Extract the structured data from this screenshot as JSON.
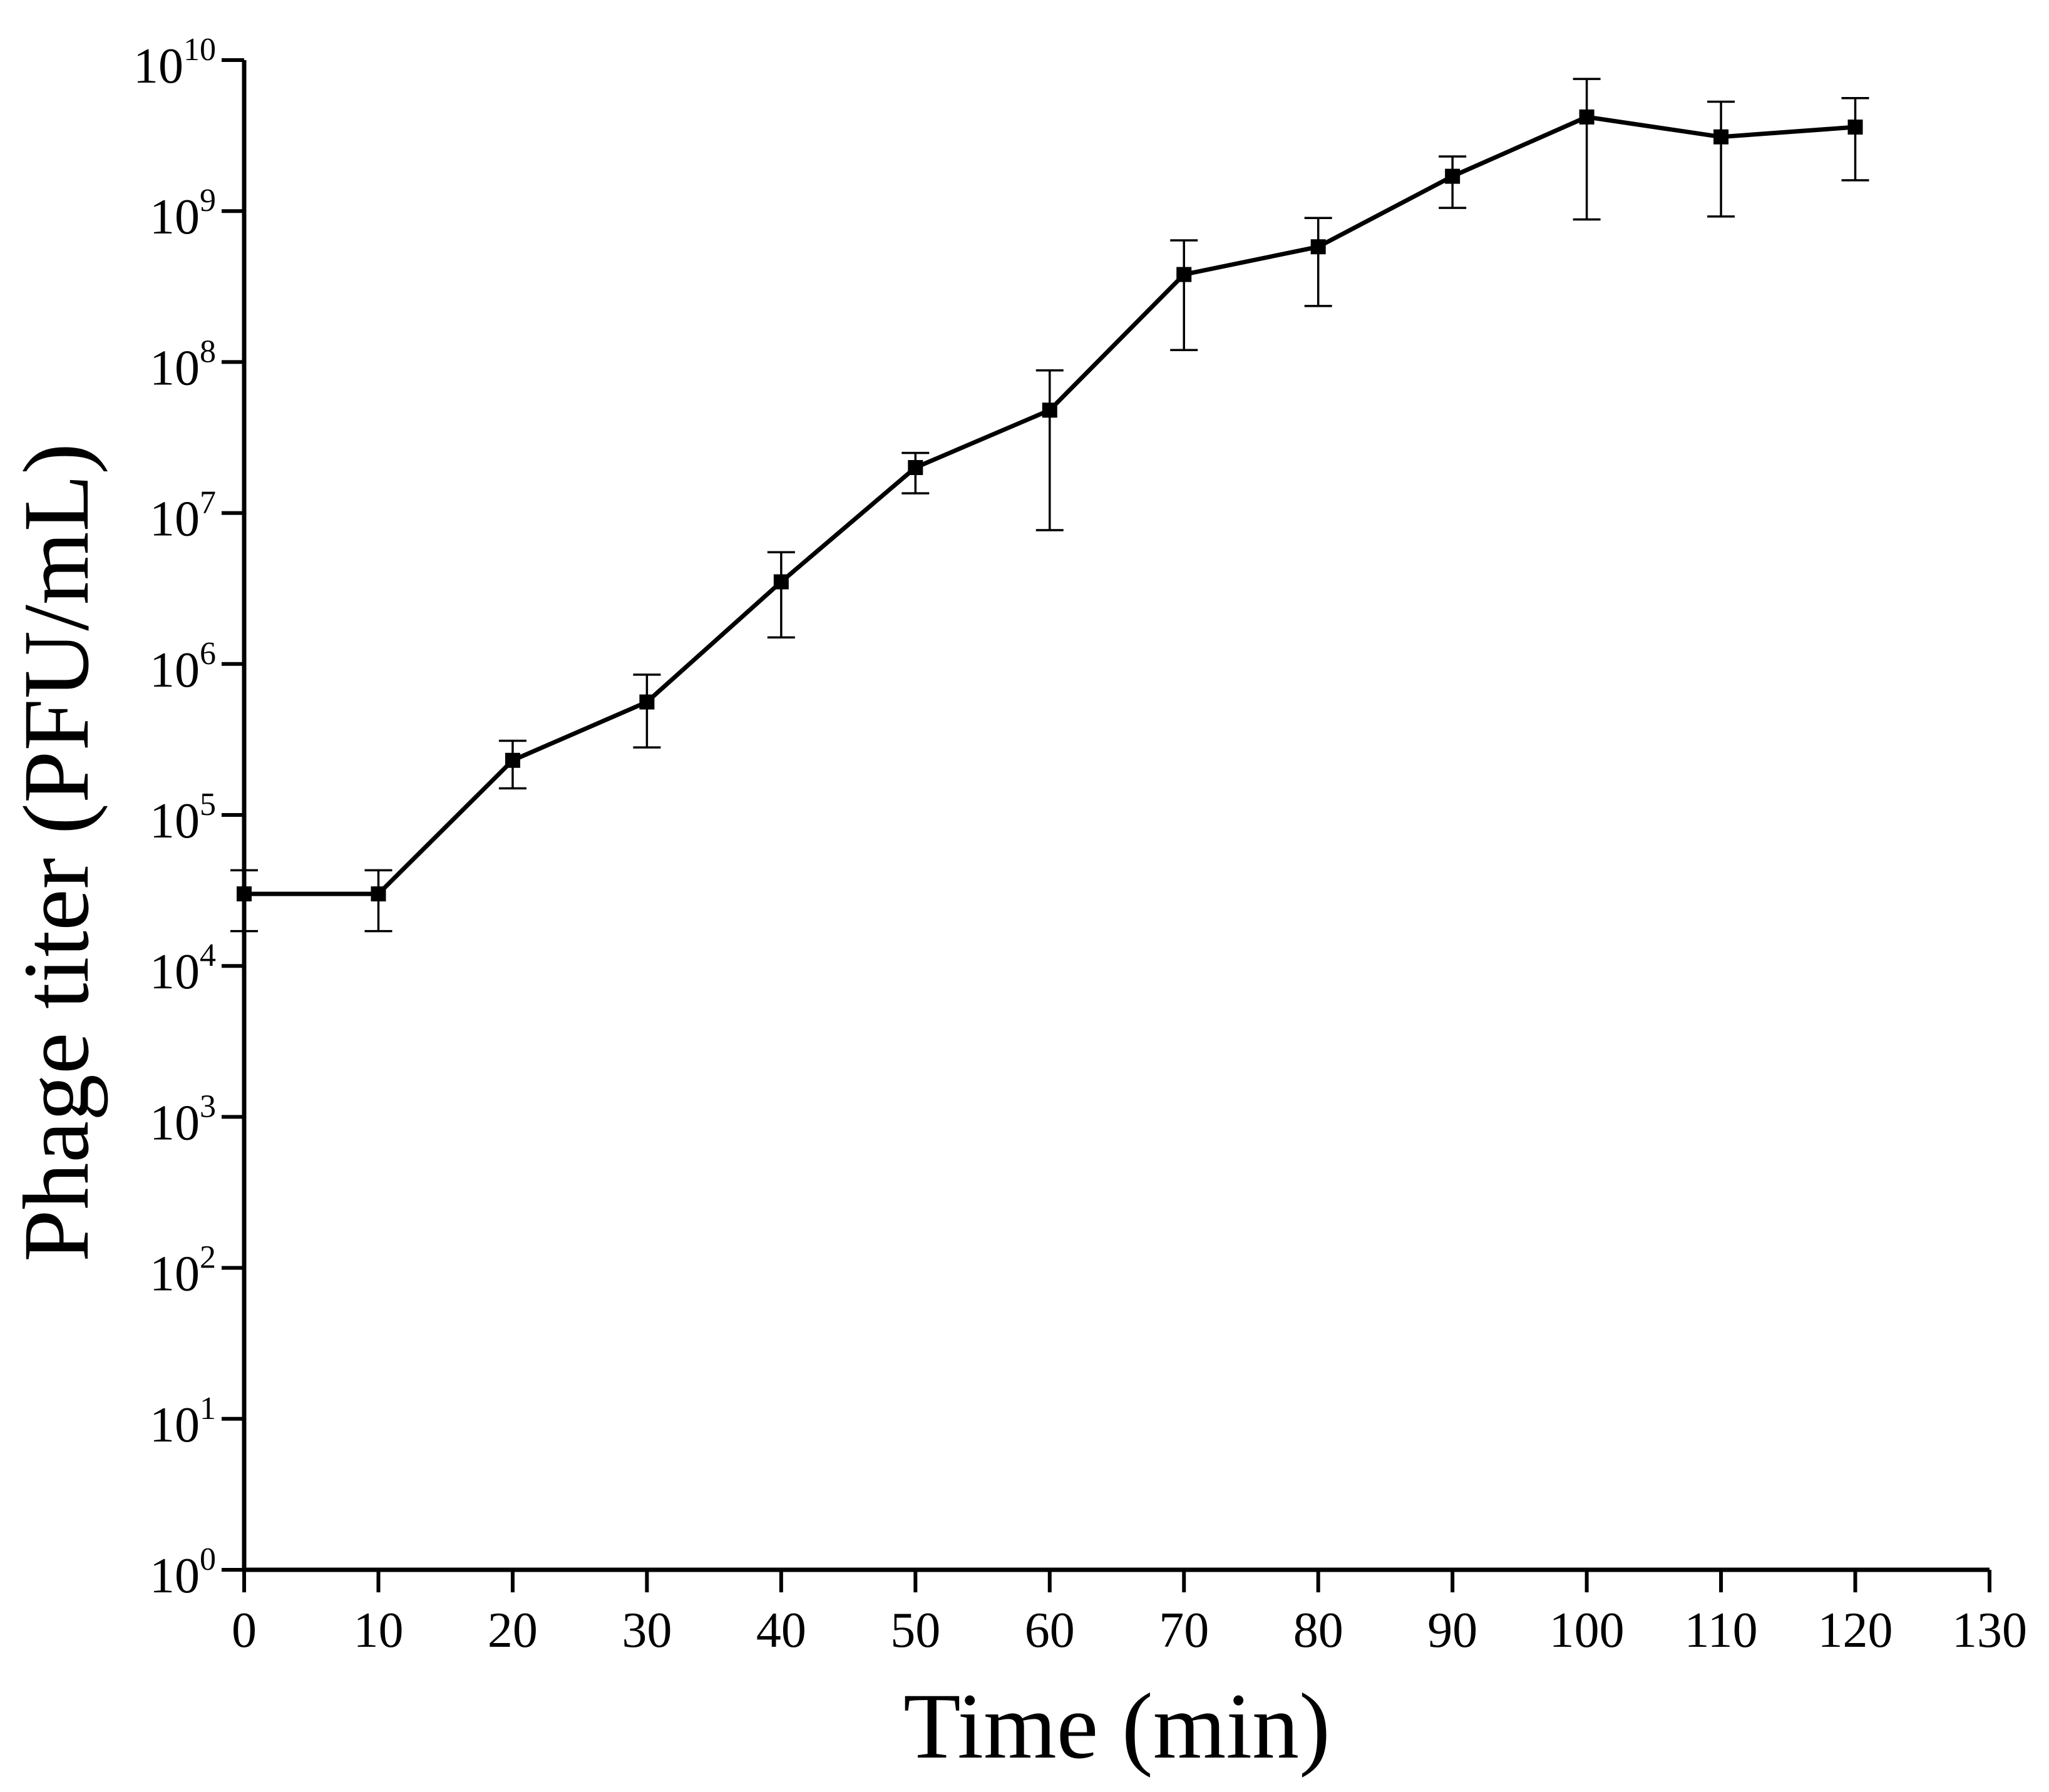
{
  "chart_data": {
    "type": "line",
    "title": "",
    "xlabel": "Time (min)",
    "ylabel": "Phage titer (PFU/mL)",
    "xlim": [
      0,
      130
    ],
    "ylim": [
      1,
      10000000000
    ],
    "yscale": "log",
    "x_ticks": [
      0,
      10,
      20,
      30,
      40,
      50,
      60,
      70,
      80,
      90,
      100,
      110,
      120,
      130
    ],
    "y_ticks": [
      {
        "base": "10",
        "exp": "0",
        "value": 1
      },
      {
        "base": "10",
        "exp": "1",
        "value": 10
      },
      {
        "base": "10",
        "exp": "2",
        "value": 100
      },
      {
        "base": "10",
        "exp": "3",
        "value": 1000
      },
      {
        "base": "10",
        "exp": "4",
        "value": 10000
      },
      {
        "base": "10",
        "exp": "5",
        "value": 100000
      },
      {
        "base": "10",
        "exp": "6",
        "value": 1000000
      },
      {
        "base": "10",
        "exp": "7",
        "value": 10000000
      },
      {
        "base": "10",
        "exp": "8",
        "value": 100000000
      },
      {
        "base": "10",
        "exp": "9",
        "value": 1000000000
      },
      {
        "base": "10",
        "exp": "10",
        "value": 10000000000
      }
    ],
    "grid": false,
    "series": [
      {
        "name": "Phage titer",
        "marker": "square",
        "color": "#000000",
        "x": [
          0,
          10,
          20,
          30,
          40,
          50,
          60,
          70,
          80,
          90,
          100,
          110,
          120
        ],
        "y": [
          30000,
          30000,
          230000,
          560000,
          3500000,
          20000000,
          48000000,
          380000000,
          580000000,
          1700000000,
          4200000000,
          3100000000,
          3600000000
        ],
        "err_low": [
          17000,
          17000,
          150000,
          280000,
          1500000,
          13500000,
          7700000,
          120000000,
          235000000,
          1050000000,
          880000000,
          920000000,
          1600000000
        ],
        "err_high": [
          43000,
          43000,
          310000,
          850000,
          5500000,
          25000000,
          88000000,
          640000000,
          900000000,
          2300000000,
          7500000000,
          5300000000,
          5600000000
        ]
      }
    ]
  }
}
